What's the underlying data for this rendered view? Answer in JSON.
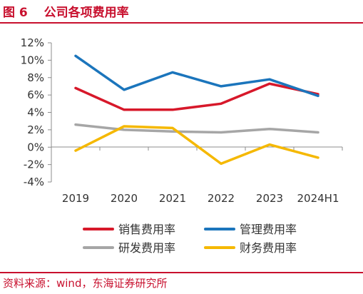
{
  "header": {
    "title": "图 6　 公司各项费用率"
  },
  "footer": {
    "source": "资料来源：wind，东海证券研究所"
  },
  "chart_data": {
    "type": "line",
    "title": "",
    "xlabel": "",
    "ylabel": "",
    "categories": [
      "2019",
      "2020",
      "2021",
      "2022",
      "2023",
      "2024H1"
    ],
    "ylim": [
      -4,
      12
    ],
    "yticks": [
      -4,
      -2,
      0,
      2,
      4,
      6,
      8,
      10,
      12
    ],
    "ytick_labels": [
      "-4%",
      "-2%",
      "0%",
      "2%",
      "4%",
      "6%",
      "8%",
      "10%",
      "12%"
    ],
    "grid": false,
    "legend_position": "bottom",
    "series": [
      {
        "name": "销售费用率",
        "color": "#d7182a",
        "values": [
          6.8,
          4.3,
          4.3,
          5.0,
          7.3,
          6.1
        ]
      },
      {
        "name": "管理费用率",
        "color": "#1b75bc",
        "values": [
          10.5,
          6.6,
          8.6,
          7.0,
          7.8,
          5.9
        ]
      },
      {
        "name": "研发费用率",
        "color": "#a6a6a6",
        "values": [
          2.6,
          2.0,
          1.8,
          1.7,
          2.1,
          1.7
        ]
      },
      {
        "name": "财务费用率",
        "color": "#f5b800",
        "values": [
          -0.4,
          2.4,
          2.2,
          -1.9,
          0.3,
          -1.2
        ]
      }
    ]
  }
}
